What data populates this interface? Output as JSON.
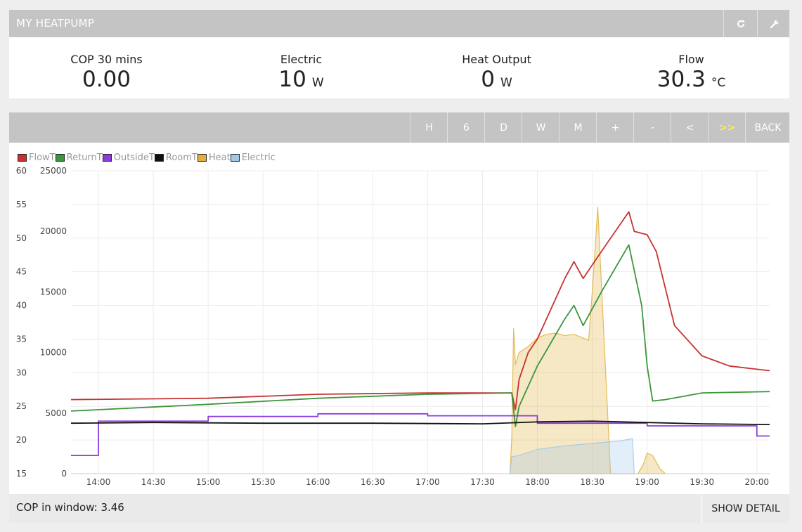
{
  "header": {
    "title": "MY HEATPUMP",
    "icons": [
      "refresh-icon",
      "wrench-icon"
    ]
  },
  "stats": [
    {
      "label": "COP 30 mins",
      "value": "0.00",
      "unit": ""
    },
    {
      "label": "Electric",
      "value": "10",
      "unit": "W"
    },
    {
      "label": "Heat Output",
      "value": "0",
      "unit": "W"
    },
    {
      "label": "Flow",
      "value": "30.3",
      "unit": "°C"
    }
  ],
  "toolbar": {
    "buttons": [
      "H",
      "6",
      "D",
      "W",
      "M",
      "+",
      "-",
      "<",
      ">>",
      "BACK"
    ],
    "active": ">>",
    "active_color": "#ffff33"
  },
  "footer": {
    "cop_text": "COP in window: 3.46",
    "show_detail": "SHOW DETAIL"
  },
  "chart_data": {
    "type": "line",
    "x_unit": "time",
    "xlim": [
      "13:45",
      "20:07"
    ],
    "x_ticks": [
      "14:00",
      "14:30",
      "15:00",
      "15:30",
      "16:00",
      "16:30",
      "17:00",
      "17:30",
      "18:00",
      "18:30",
      "19:00",
      "19:30",
      "20:00"
    ],
    "y_left": {
      "min": 15,
      "max": 60,
      "ticks": [
        15,
        20,
        25,
        30,
        35,
        40,
        45,
        50,
        55,
        60
      ],
      "unit": "°C"
    },
    "y_right": {
      "min": 0,
      "max": 25000,
      "ticks": [
        0,
        5000,
        10000,
        15000,
        20000,
        25000
      ],
      "unit": "W"
    },
    "grid": true,
    "legend_position": "top-left",
    "series": [
      {
        "name": "FlowT",
        "axis": "left",
        "kind": "line",
        "color": "#c83232",
        "x": [
          "13:45",
          "15:00",
          "16:00",
          "17:00",
          "17:46",
          "17:48",
          "17:50",
          "17:55",
          "18:00",
          "18:15",
          "18:20",
          "18:25",
          "18:35",
          "18:50",
          "18:53",
          "19:00",
          "19:05",
          "19:15",
          "19:30",
          "19:45",
          "20:07"
        ],
        "y": [
          26.0,
          26.2,
          26.8,
          27.0,
          27.0,
          24.5,
          29.0,
          33.0,
          35.0,
          44.0,
          46.5,
          44.0,
          48.0,
          53.9,
          51.0,
          50.5,
          48.0,
          37.0,
          32.5,
          31.0,
          30.3
        ]
      },
      {
        "name": "ReturnT",
        "axis": "left",
        "kind": "line",
        "color": "#3c963c",
        "x": [
          "13:45",
          "15:00",
          "16:00",
          "17:00",
          "17:46",
          "17:48",
          "17:50",
          "17:55",
          "18:00",
          "18:15",
          "18:20",
          "18:25",
          "18:35",
          "18:50",
          "18:57",
          "19:00",
          "19:03",
          "19:10",
          "19:30",
          "20:07"
        ],
        "y": [
          24.3,
          25.3,
          26.2,
          26.8,
          27.0,
          22.0,
          25.0,
          28.0,
          31.0,
          38.0,
          40.0,
          37.0,
          42.0,
          49.0,
          40.0,
          31.0,
          25.8,
          26.0,
          27.0,
          27.2
        ]
      },
      {
        "name": "OutsideT",
        "axis": "left",
        "kind": "line",
        "color": "#8c3cdc",
        "x": [
          "13:45",
          "14:00",
          "14:00",
          "15:00",
          "15:00",
          "16:00",
          "16:00",
          "17:00",
          "17:00",
          "18:00",
          "18:00",
          "19:00",
          "19:00",
          "20:00",
          "20:00",
          "20:07"
        ],
        "y": [
          17.7,
          17.7,
          22.8,
          22.8,
          23.5,
          23.5,
          23.9,
          23.9,
          23.6,
          23.6,
          22.5,
          22.5,
          22.1,
          22.1,
          20.6,
          20.6
        ]
      },
      {
        "name": "RoomT",
        "axis": "left",
        "kind": "line",
        "color": "#111111",
        "x": [
          "13:45",
          "14:30",
          "15:30",
          "16:30",
          "17:30",
          "18:00",
          "18:30",
          "19:00",
          "19:30",
          "20:07"
        ],
        "y": [
          22.5,
          22.6,
          22.5,
          22.5,
          22.4,
          22.7,
          22.8,
          22.6,
          22.4,
          22.3
        ]
      },
      {
        "name": "Heat",
        "axis": "right",
        "kind": "area",
        "color": "#e0b040",
        "x": [
          "17:45",
          "17:46",
          "17:47",
          "17:48",
          "17:50",
          "17:55",
          "18:00",
          "18:05",
          "18:10",
          "18:15",
          "18:20",
          "18:25",
          "18:28",
          "18:30",
          "18:33",
          "18:40",
          "18:52",
          "18:55",
          "18:58",
          "19:00",
          "19:03",
          "19:07",
          "19:10"
        ],
        "y": [
          0,
          3000,
          12000,
          9000,
          10000,
          10500,
          11200,
          11500,
          11600,
          11400,
          11500,
          11200,
          11000,
          15000,
          22000,
          0,
          0,
          0,
          800,
          1700,
          1500,
          400,
          0
        ]
      },
      {
        "name": "Electric",
        "axis": "right",
        "kind": "area",
        "color": "#a0c8e8",
        "x": [
          "17:45",
          "17:46",
          "17:50",
          "18:00",
          "18:15",
          "18:30",
          "18:45",
          "18:52",
          "18:53"
        ],
        "y": [
          0,
          1400,
          1500,
          2000,
          2300,
          2500,
          2700,
          2900,
          0
        ]
      }
    ]
  }
}
